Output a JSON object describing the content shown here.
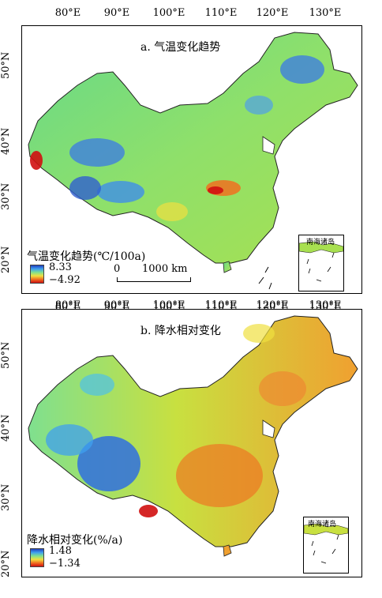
{
  "panels": [
    {
      "id": "a",
      "title": "a. 气温变化趋势",
      "lon_ticks": [
        "80°E",
        "90°E",
        "100°E",
        "110°E",
        "120°E",
        "130°E"
      ],
      "lat_ticks": [
        "50°N",
        "40°N",
        "30°N",
        "20°N"
      ],
      "legend_title": "气温变化趋势(℃/100a)",
      "legend_max": "8.33",
      "legend_min": "−4.92",
      "legend_colors": [
        "#1f3fbf",
        "#3f9fef",
        "#7fe08f",
        "#f0e040",
        "#f07020",
        "#d01010"
      ],
      "scale_zero": "0",
      "scale_text": "1000 km",
      "inset_label": "南海诸岛"
    },
    {
      "id": "b",
      "title": "b. 降水相对变化",
      "lon_ticks": [
        "80°E",
        "90°E",
        "100°E",
        "110°E",
        "120°E",
        "130°E"
      ],
      "lat_ticks": [
        "50°N",
        "40°N",
        "30°N",
        "20°N"
      ],
      "legend_title": "降水相对变化(%/a)",
      "legend_max": "1.48",
      "legend_min": "−1.34",
      "legend_colors": [
        "#1f3fbf",
        "#3f9fef",
        "#7fe08f",
        "#f0e040",
        "#f07020",
        "#d01010"
      ],
      "inset_label": "南海诸岛"
    }
  ]
}
